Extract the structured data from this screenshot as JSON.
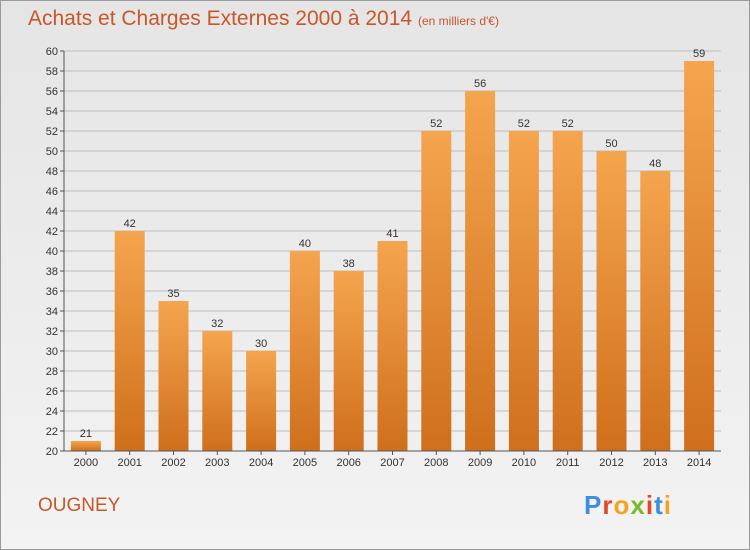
{
  "title": "Achats et Charges Externes 2000 à 2014",
  "subtitle": "(en milliers d'€)",
  "commune": "OUGNEY",
  "logo": {
    "letters": [
      "P",
      "r",
      "o",
      "x",
      "i",
      "t",
      "i"
    ],
    "colors": [
      "#3d8ee0",
      "#e04a23",
      "#f2a41a",
      "#7cb82f",
      "#e04a23",
      "#3d8ee0",
      "#f2a41a"
    ]
  },
  "colors": {
    "accent": "#c8572a",
    "bar_top": "#f5a54e",
    "bar_bottom": "#cf6f1c",
    "grid": "#bdbdbd"
  },
  "chart_data": {
    "type": "bar",
    "title": "Achats et Charges Externes 2000 à 2014",
    "subtitle": "(en milliers d'€)",
    "categories": [
      "2000",
      "2001",
      "2002",
      "2003",
      "2004",
      "2005",
      "2006",
      "2007",
      "2008",
      "2009",
      "2010",
      "2011",
      "2012",
      "2013",
      "2014"
    ],
    "values": [
      21,
      42,
      35,
      32,
      30,
      40,
      38,
      41,
      52,
      56,
      52,
      52,
      50,
      48,
      59
    ],
    "ylim": [
      20,
      60
    ],
    "yticks": [
      20,
      22,
      24,
      26,
      28,
      30,
      32,
      34,
      36,
      38,
      40,
      42,
      44,
      46,
      48,
      50,
      52,
      54,
      56,
      58,
      60
    ],
    "grid": true,
    "data_labels": true
  }
}
